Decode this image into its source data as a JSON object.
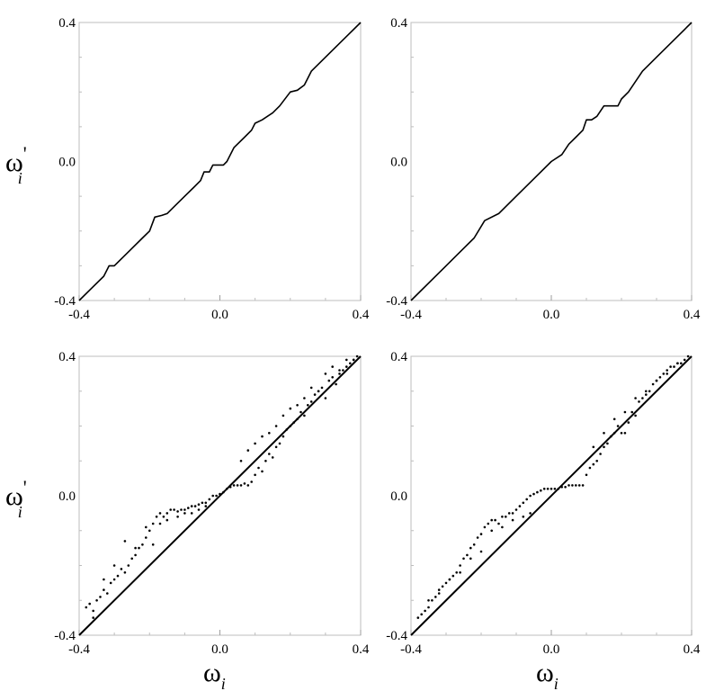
{
  "figure": {
    "ylabel_symbol": "ω",
    "ylabel_prime": "'",
    "ylabel_sub": "i",
    "xlabel_symbol": "ω",
    "xlabel_sub": "i"
  },
  "chart_data": [
    {
      "type": "line",
      "xlim": [
        -0.4,
        0.4
      ],
      "ylim": [
        -0.4,
        0.4
      ],
      "xticks": [
        "-0.4",
        "0.0",
        "0.4"
      ],
      "yticks": [
        "-0.4",
        "0.0",
        "0.4"
      ],
      "grid": false,
      "series": [
        {
          "x": [
            -0.4,
            -0.37,
            -0.33,
            -0.315,
            -0.3,
            -0.26,
            -0.22,
            -0.2,
            -0.185,
            -0.165,
            -0.15,
            -0.13,
            -0.1,
            -0.075,
            -0.055,
            -0.045,
            -0.03,
            -0.02,
            0.0,
            0.01,
            0.02,
            0.04,
            0.07,
            0.09,
            0.1,
            0.12,
            0.15,
            0.17,
            0.2,
            0.22,
            0.24,
            0.26,
            0.3,
            0.35,
            0.4
          ],
          "y": [
            -0.4,
            -0.37,
            -0.33,
            -0.3,
            -0.3,
            -0.26,
            -0.22,
            -0.2,
            -0.16,
            -0.155,
            -0.15,
            -0.13,
            -0.1,
            -0.075,
            -0.055,
            -0.03,
            -0.03,
            -0.01,
            -0.01,
            -0.01,
            0.0,
            0.04,
            0.07,
            0.09,
            0.11,
            0.12,
            0.14,
            0.16,
            0.2,
            0.205,
            0.22,
            0.26,
            0.3,
            0.35,
            0.4
          ]
        }
      ]
    },
    {
      "type": "line",
      "xlim": [
        -0.4,
        0.4
      ],
      "ylim": [
        -0.4,
        0.4
      ],
      "xticks": [
        "-0.4",
        "0.0",
        "0.4"
      ],
      "yticks": [
        "-0.4",
        "0.0",
        "0.4"
      ],
      "grid": false,
      "series": [
        {
          "x": [
            -0.4,
            -0.3,
            -0.26,
            -0.22,
            -0.19,
            -0.15,
            -0.1,
            -0.05,
            0.0,
            0.03,
            0.05,
            0.07,
            0.09,
            0.1,
            0.115,
            0.13,
            0.15,
            0.17,
            0.19,
            0.2,
            0.22,
            0.26,
            0.3,
            0.35,
            0.4
          ],
          "y": [
            -0.4,
            -0.3,
            -0.26,
            -0.22,
            -0.17,
            -0.15,
            -0.1,
            -0.05,
            0.0,
            0.02,
            0.05,
            0.07,
            0.09,
            0.12,
            0.12,
            0.13,
            0.16,
            0.16,
            0.16,
            0.18,
            0.2,
            0.26,
            0.3,
            0.35,
            0.4
          ]
        }
      ]
    },
    {
      "type": "scatter",
      "xlim": [
        -0.4,
        0.4
      ],
      "ylim": [
        -0.4,
        0.4
      ],
      "xticks": [
        "-0.4",
        "0.0",
        "0.4"
      ],
      "yticks": [
        "-0.4",
        "0.0",
        "0.4"
      ],
      "grid": false,
      "series": [
        {
          "x": [
            -0.38,
            -0.37,
            -0.36,
            -0.35,
            -0.34,
            -0.33,
            -0.32,
            -0.31,
            -0.3,
            -0.29,
            -0.28,
            -0.27,
            -0.26,
            -0.25,
            -0.24,
            -0.23,
            -0.22,
            -0.21,
            -0.2,
            -0.19,
            -0.18,
            -0.17,
            -0.16,
            -0.15,
            -0.14,
            -0.13,
            -0.12,
            -0.11,
            -0.1,
            -0.09,
            -0.08,
            -0.07,
            -0.06,
            -0.05,
            -0.04,
            -0.03,
            -0.02,
            -0.01,
            0.0,
            0.01,
            0.02,
            0.03,
            0.04,
            0.05,
            0.06,
            0.07,
            0.08,
            0.09,
            0.1,
            0.11,
            0.12,
            0.13,
            0.14,
            0.15,
            0.16,
            0.17,
            0.18,
            0.19,
            0.2,
            0.21,
            0.22,
            0.23,
            0.24,
            0.25,
            0.26,
            0.27,
            0.28,
            0.29,
            0.3,
            0.31,
            0.32,
            0.33,
            0.34,
            0.35,
            0.36,
            0.37,
            0.38,
            0.39,
            -0.36,
            -0.33,
            -0.3,
            -0.27,
            -0.24,
            -0.21,
            -0.19,
            -0.17,
            -0.15,
            -0.12,
            -0.1,
            -0.08,
            -0.06,
            -0.04,
            0.06,
            0.08,
            0.1,
            0.12,
            0.14,
            0.16,
            0.18,
            0.2,
            0.22,
            0.24,
            0.26,
            0.28,
            0.3,
            0.32,
            0.34,
            0.36,
            0.38
          ],
          "y": [
            -0.32,
            -0.31,
            -0.33,
            -0.3,
            -0.29,
            -0.27,
            -0.28,
            -0.25,
            -0.24,
            -0.23,
            -0.21,
            -0.22,
            -0.2,
            -0.18,
            -0.17,
            -0.15,
            -0.14,
            -0.12,
            -0.1,
            -0.08,
            -0.06,
            -0.05,
            -0.06,
            -0.05,
            -0.04,
            -0.04,
            -0.045,
            -0.04,
            -0.04,
            -0.035,
            -0.03,
            -0.03,
            -0.025,
            -0.02,
            -0.02,
            -0.01,
            0.0,
            0.0,
            0.005,
            0.01,
            0.02,
            0.025,
            0.03,
            0.03,
            0.03,
            0.035,
            0.03,
            0.04,
            0.06,
            0.08,
            0.07,
            0.1,
            0.12,
            0.11,
            0.14,
            0.15,
            0.17,
            0.19,
            0.2,
            0.21,
            0.22,
            0.24,
            0.23,
            0.26,
            0.27,
            0.29,
            0.3,
            0.31,
            0.28,
            0.33,
            0.34,
            0.32,
            0.35,
            0.36,
            0.37,
            0.38,
            0.39,
            0.4,
            -0.35,
            -0.24,
            -0.2,
            -0.13,
            -0.15,
            -0.09,
            -0.14,
            -0.08,
            -0.07,
            -0.06,
            -0.05,
            -0.05,
            -0.04,
            -0.03,
            0.1,
            0.13,
            0.15,
            0.17,
            0.18,
            0.2,
            0.23,
            0.25,
            0.26,
            0.28,
            0.31,
            0.3,
            0.35,
            0.37,
            0.36,
            0.39,
            0.39
          ]
        }
      ]
    },
    {
      "type": "scatter",
      "xlim": [
        -0.4,
        0.4
      ],
      "ylim": [
        -0.4,
        0.4
      ],
      "xticks": [
        "-0.4",
        "0.0",
        "0.4"
      ],
      "yticks": [
        "-0.4",
        "0.0",
        "0.4"
      ],
      "grid": false,
      "series": [
        {
          "x": [
            -0.38,
            -0.37,
            -0.36,
            -0.35,
            -0.34,
            -0.33,
            -0.32,
            -0.31,
            -0.3,
            -0.29,
            -0.28,
            -0.27,
            -0.26,
            -0.25,
            -0.24,
            -0.23,
            -0.22,
            -0.21,
            -0.2,
            -0.19,
            -0.18,
            -0.17,
            -0.16,
            -0.15,
            -0.14,
            -0.13,
            -0.12,
            -0.11,
            -0.1,
            -0.09,
            -0.08,
            -0.07,
            -0.06,
            -0.05,
            -0.04,
            -0.03,
            -0.02,
            -0.01,
            0.0,
            0.01,
            0.02,
            0.03,
            0.04,
            0.05,
            0.06,
            0.07,
            0.08,
            0.09,
            0.1,
            0.11,
            0.12,
            0.13,
            0.14,
            0.15,
            0.16,
            0.17,
            0.18,
            0.19,
            0.2,
            0.21,
            0.22,
            0.23,
            0.24,
            0.25,
            0.26,
            0.27,
            0.28,
            0.29,
            0.3,
            0.31,
            0.32,
            0.33,
            0.34,
            0.35,
            0.36,
            0.37,
            0.38,
            0.39,
            -0.35,
            -0.32,
            -0.29,
            -0.26,
            -0.23,
            -0.2,
            -0.17,
            -0.14,
            -0.11,
            -0.08,
            -0.06,
            0.12,
            0.15,
            0.18,
            0.21,
            0.24,
            0.27,
            0.3,
            0.33,
            0.36
          ],
          "y": [
            -0.35,
            -0.34,
            -0.33,
            -0.32,
            -0.3,
            -0.29,
            -0.27,
            -0.26,
            -0.25,
            -0.24,
            -0.23,
            -0.22,
            -0.2,
            -0.18,
            -0.17,
            -0.15,
            -0.14,
            -0.12,
            -0.11,
            -0.09,
            -0.08,
            -0.07,
            -0.07,
            -0.08,
            -0.06,
            -0.06,
            -0.05,
            -0.05,
            -0.04,
            -0.03,
            -0.02,
            -0.01,
            0.0,
            0.005,
            0.01,
            0.015,
            0.02,
            0.02,
            0.02,
            0.02,
            0.02,
            0.025,
            0.025,
            0.03,
            0.03,
            0.03,
            0.03,
            0.03,
            0.06,
            0.08,
            0.09,
            0.1,
            0.12,
            0.14,
            0.15,
            0.17,
            0.18,
            0.2,
            0.18,
            0.18,
            0.21,
            0.24,
            0.23,
            0.27,
            0.28,
            0.29,
            0.3,
            0.32,
            0.33,
            0.34,
            0.35,
            0.35,
            0.37,
            0.37,
            0.38,
            0.38,
            0.39,
            0.4,
            -0.3,
            -0.28,
            -0.24,
            -0.22,
            -0.18,
            -0.16,
            -0.1,
            -0.09,
            -0.07,
            -0.06,
            -0.05,
            0.14,
            0.18,
            0.22,
            0.24,
            0.28,
            0.3,
            0.33,
            0.36,
            0.38
          ]
        }
      ]
    }
  ]
}
